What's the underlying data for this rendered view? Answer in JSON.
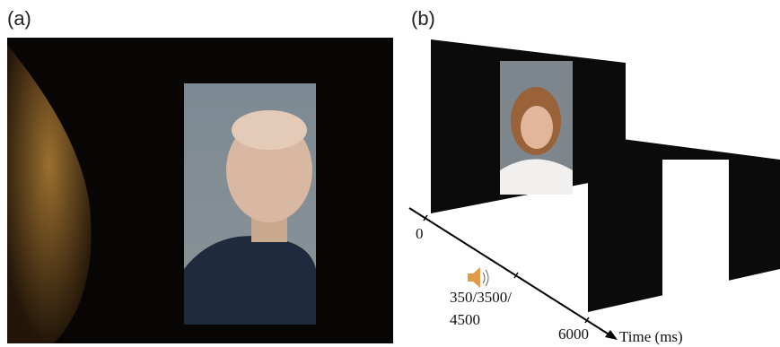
{
  "panels": [
    {
      "label": "(a)"
    },
    {
      "label": "(b)",
      "timeline": {
        "ticks": [
          "0",
          "350/3500/",
          "4500",
          "6000"
        ],
        "axis_label": "Time (ms)"
      }
    }
  ]
}
